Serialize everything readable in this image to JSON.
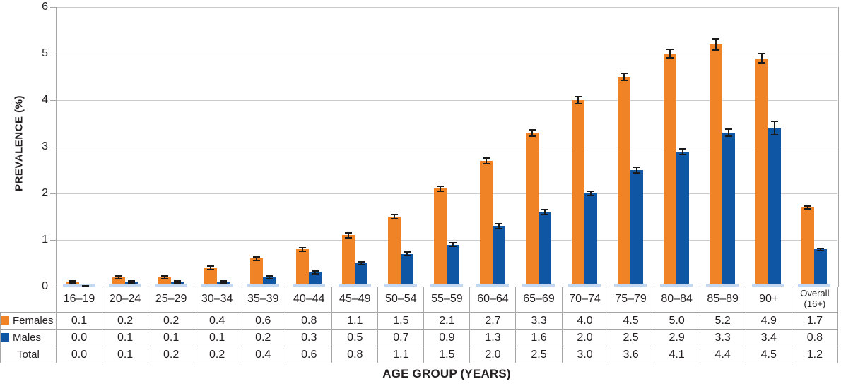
{
  "chart_data": {
    "type": "bar",
    "title": "",
    "xlabel": "AGE GROUP (YEARS)",
    "ylabel": "PREVALENCE (%)",
    "ylim": [
      0,
      6
    ],
    "yticks": [
      "0",
      "1",
      "2",
      "3",
      "4",
      "5",
      "6"
    ],
    "grid": true,
    "error_bars": true,
    "legend_position": "table-left",
    "categories": [
      "16–19",
      "20–24",
      "25–29",
      "30–34",
      "35–39",
      "40–44",
      "45–49",
      "50–54",
      "55–59",
      "60–64",
      "65–69",
      "70–74",
      "75–79",
      "80–84",
      "85–89",
      "90+",
      "Overall (16+)"
    ],
    "series": [
      {
        "name": "Females",
        "color": "#F08326",
        "values": [
          0.1,
          0.2,
          0.2,
          0.4,
          0.6,
          0.8,
          1.1,
          1.5,
          2.1,
          2.7,
          3.3,
          4.0,
          4.5,
          5.0,
          5.2,
          4.9,
          1.7
        ],
        "errors": [
          0.02,
          0.03,
          0.03,
          0.04,
          0.04,
          0.04,
          0.05,
          0.05,
          0.05,
          0.06,
          0.07,
          0.08,
          0.08,
          0.09,
          0.12,
          0.1,
          0.03
        ]
      },
      {
        "name": "Males",
        "color": "#0F56A4",
        "values": [
          0.0,
          0.1,
          0.1,
          0.1,
          0.2,
          0.3,
          0.5,
          0.7,
          0.9,
          1.3,
          1.6,
          2.0,
          2.5,
          2.9,
          3.3,
          3.4,
          0.8
        ],
        "errors": [
          0.01,
          0.02,
          0.02,
          0.02,
          0.03,
          0.03,
          0.03,
          0.04,
          0.04,
          0.05,
          0.05,
          0.05,
          0.06,
          0.06,
          0.08,
          0.14,
          0.02
        ]
      }
    ],
    "colors": {
      "females": "#F08326",
      "males": "#0F56A4",
      "group_shadow": "#C3D8F0",
      "error_bar": "#1A1A1A",
      "grid": "#CBCBCB",
      "axis": "#A6A6A6"
    },
    "table": {
      "rows": [
        {
          "label": "Females",
          "swatch": "#F08326",
          "values": [
            "0.1",
            "0.2",
            "0.2",
            "0.4",
            "0.6",
            "0.8",
            "1.1",
            "1.5",
            "2.1",
            "2.7",
            "3.3",
            "4.0",
            "4.5",
            "5.0",
            "5.2",
            "4.9",
            "1.7"
          ]
        },
        {
          "label": "Males",
          "swatch": "#0F56A4",
          "values": [
            "0.0",
            "0.1",
            "0.1",
            "0.1",
            "0.2",
            "0.3",
            "0.5",
            "0.7",
            "0.9",
            "1.3",
            "1.6",
            "2.0",
            "2.5",
            "2.9",
            "3.3",
            "3.4",
            "0.8"
          ]
        },
        {
          "label": "Total",
          "swatch": null,
          "values": [
            "0.0",
            "0.1",
            "0.2",
            "0.2",
            "0.4",
            "0.6",
            "0.8",
            "1.1",
            "1.5",
            "2.0",
            "2.5",
            "3.0",
            "3.6",
            "4.1",
            "4.4",
            "4.5",
            "1.2"
          ]
        }
      ]
    }
  }
}
